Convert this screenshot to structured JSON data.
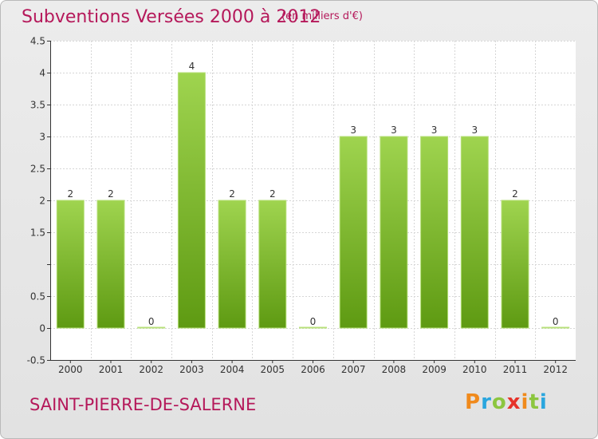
{
  "header": {
    "title": "Subventions Versées 2000 à 2012",
    "unit": "(en milliers d'€)"
  },
  "footer": {
    "commune": "SAINT-PIERRE-DE-SALERNE",
    "logo_text": "Proxiti",
    "logo_colors": [
      "#f08a1c",
      "#2aa6de",
      "#8cc63f",
      "#e6332a",
      "#f08a1c",
      "#8cc63f",
      "#2aa6de"
    ]
  },
  "colors": {
    "bar_top": "#9fd44f",
    "bar_bottom": "#5e9a12",
    "text_accent": "#b5185a"
  },
  "chart_data": {
    "type": "bar",
    "title": "Subventions Versées 2000 à 2012",
    "subtitle": "(en milliers d'€)",
    "categories": [
      "2000",
      "2001",
      "2002",
      "2003",
      "2004",
      "2005",
      "2006",
      "2007",
      "2008",
      "2009",
      "2010",
      "2011",
      "2012"
    ],
    "values": [
      2,
      2,
      0,
      4,
      2,
      2,
      0,
      3,
      3,
      3,
      3,
      2,
      0
    ],
    "data_labels": [
      "2",
      "2",
      "0",
      "4",
      "2",
      "2",
      "0",
      "3",
      "3",
      "3",
      "3",
      "2",
      "0"
    ],
    "y_ticks": [
      -0.5,
      0,
      0.5,
      1,
      1.5,
      2,
      2.5,
      3,
      3.5,
      4,
      4.5
    ],
    "y_tick_labels": [
      "-0.5",
      "0",
      "0.5",
      "",
      "1.5",
      "2",
      "2.5",
      "3",
      "3.5",
      "4",
      "4.5"
    ],
    "ylim": [
      -0.5,
      4.5
    ],
    "grid": true
  }
}
